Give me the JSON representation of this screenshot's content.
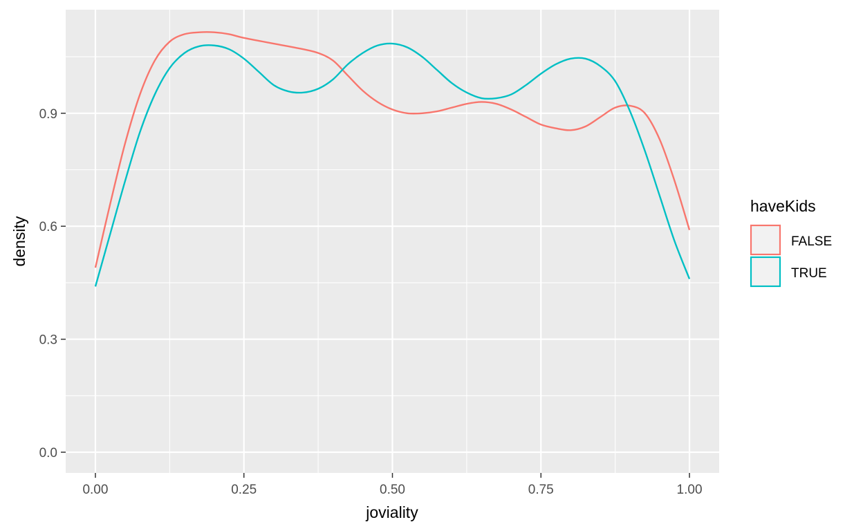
{
  "chart_data": {
    "type": "line",
    "title": "",
    "xlabel": "joviality",
    "ylabel": "density",
    "xlim": [
      -0.05,
      1.05
    ],
    "ylim": [
      -0.055,
      1.175
    ],
    "x_ticks": [
      0.0,
      0.25,
      0.5,
      0.75,
      1.0
    ],
    "x_tick_labels": [
      "0.00",
      "0.25",
      "0.50",
      "0.75",
      "1.00"
    ],
    "y_ticks": [
      0.0,
      0.3,
      0.6,
      0.9
    ],
    "y_tick_labels": [
      "0.0",
      "0.3",
      "0.6",
      "0.9"
    ],
    "grid": true,
    "legend": {
      "title": "haveKids",
      "position": "right"
    },
    "series": [
      {
        "name": "FALSE",
        "color": "#F8766D",
        "x": [
          0.0,
          0.025,
          0.05,
          0.075,
          0.1,
          0.125,
          0.15,
          0.175,
          0.2,
          0.225,
          0.25,
          0.3,
          0.35,
          0.375,
          0.4,
          0.425,
          0.45,
          0.475,
          0.5,
          0.525,
          0.55,
          0.575,
          0.6,
          0.625,
          0.65,
          0.675,
          0.7,
          0.725,
          0.75,
          0.775,
          0.8,
          0.825,
          0.85,
          0.875,
          0.9,
          0.925,
          0.95,
          0.975,
          1.0
        ],
        "y": [
          0.49,
          0.66,
          0.82,
          0.95,
          1.04,
          1.09,
          1.11,
          1.115,
          1.115,
          1.11,
          1.1,
          1.085,
          1.07,
          1.06,
          1.04,
          1.0,
          0.96,
          0.93,
          0.91,
          0.9,
          0.9,
          0.905,
          0.915,
          0.925,
          0.93,
          0.925,
          0.91,
          0.89,
          0.87,
          0.86,
          0.855,
          0.865,
          0.89,
          0.915,
          0.92,
          0.9,
          0.83,
          0.72,
          0.59
        ]
      },
      {
        "name": "TRUE",
        "color": "#00BFC4",
        "x": [
          0.0,
          0.025,
          0.05,
          0.075,
          0.1,
          0.125,
          0.15,
          0.175,
          0.2,
          0.225,
          0.25,
          0.275,
          0.3,
          0.325,
          0.35,
          0.375,
          0.4,
          0.425,
          0.45,
          0.475,
          0.5,
          0.525,
          0.55,
          0.575,
          0.6,
          0.625,
          0.65,
          0.675,
          0.7,
          0.725,
          0.75,
          0.775,
          0.8,
          0.825,
          0.85,
          0.875,
          0.9,
          0.925,
          0.95,
          0.975,
          1.0
        ],
        "y": [
          0.44,
          0.58,
          0.72,
          0.85,
          0.95,
          1.02,
          1.06,
          1.078,
          1.08,
          1.07,
          1.045,
          1.01,
          0.975,
          0.958,
          0.955,
          0.965,
          0.99,
          1.03,
          1.06,
          1.08,
          1.085,
          1.075,
          1.05,
          1.015,
          0.98,
          0.955,
          0.94,
          0.94,
          0.95,
          0.975,
          1.005,
          1.03,
          1.045,
          1.045,
          1.025,
          0.985,
          0.905,
          0.8,
          0.68,
          0.56,
          0.46
        ]
      }
    ]
  }
}
